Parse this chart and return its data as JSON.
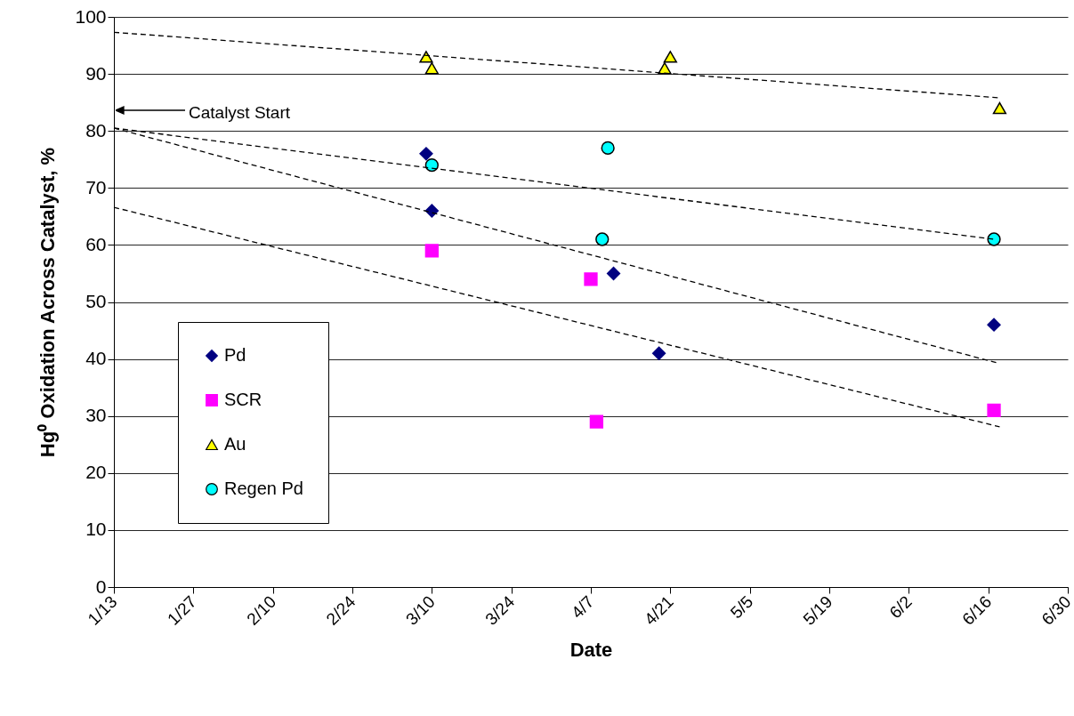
{
  "chart_data": {
    "type": "scatter",
    "xlabel": "Date",
    "ylabel": "Hg⁰ Oxidation Across Catalyst, %",
    "xlim": [
      "--01-13",
      "--06-30"
    ],
    "xticks": [
      {
        "value": "--01-13",
        "label": "1/13"
      },
      {
        "value": "--01-27",
        "label": "1/27"
      },
      {
        "value": "--02-10",
        "label": "2/10"
      },
      {
        "value": "--02-24",
        "label": "2/24"
      },
      {
        "value": "--03-10",
        "label": "3/10"
      },
      {
        "value": "--03-24",
        "label": "3/24"
      },
      {
        "value": "--04-07",
        "label": "4/7"
      },
      {
        "value": "--04-21",
        "label": "4/21"
      },
      {
        "value": "--05-05",
        "label": "5/5"
      },
      {
        "value": "--05-19",
        "label": "5/19"
      },
      {
        "value": "--06-02",
        "label": "6/2"
      },
      {
        "value": "--06-16",
        "label": "6/16"
      },
      {
        "value": "--06-30",
        "label": "6/30"
      }
    ],
    "ylim": [
      0,
      100
    ],
    "yticks": [
      0,
      10,
      20,
      30,
      40,
      50,
      60,
      70,
      80,
      90,
      100
    ],
    "grid": "y",
    "legend": "bottom left",
    "series": [
      {
        "name": "Pd",
        "color": "#000080",
        "marker": "diamond",
        "x": [
          "--03-09",
          "--03-10",
          "--04-11",
          "--04-19",
          "--06-17"
        ],
        "values": [
          76,
          66,
          55,
          41,
          46
        ]
      },
      {
        "name": "SCR",
        "color": "#ff00ff",
        "marker": "square",
        "x": [
          "--03-10",
          "--04-07",
          "--04-08",
          "--06-17"
        ],
        "values": [
          59,
          54,
          29,
          31
        ]
      },
      {
        "name": "Au",
        "color": "#ffff00",
        "marker": "triangle",
        "x": [
          "--03-09",
          "--03-10",
          "--04-20",
          "--04-21",
          "--06-18"
        ],
        "values": [
          93,
          91,
          91,
          93,
          84
        ]
      },
      {
        "name": "Regen Pd",
        "color": "#00ffff",
        "marker": "circle",
        "x": [
          "--03-10",
          "--04-09",
          "--04-10",
          "--06-17"
        ],
        "values": [
          74,
          61,
          77,
          61
        ]
      },
      {
        "type": "line",
        "color": "#000000",
        "line_style": "dashed",
        "x": [
          "--01-13",
          "--06-18"
        ],
        "values": [
          97.3,
          85.8
        ]
      },
      {
        "type": "line",
        "color": "#000000",
        "line_style": "dashed",
        "x": [
          "--01-13",
          "--06-17"
        ],
        "values": [
          80.5,
          61
        ]
      },
      {
        "type": "line",
        "color": "#000000",
        "line_style": "dashed",
        "x": [
          "--01-13",
          "--06-18"
        ],
        "values": [
          80.5,
          39.2
        ]
      },
      {
        "type": "line",
        "color": "#000000",
        "line_style": "dashed",
        "x": [
          "--01-13",
          "--06-18"
        ],
        "values": [
          66.6,
          28.1
        ]
      }
    ],
    "annotations": [
      "Catalyst Start"
    ]
  }
}
